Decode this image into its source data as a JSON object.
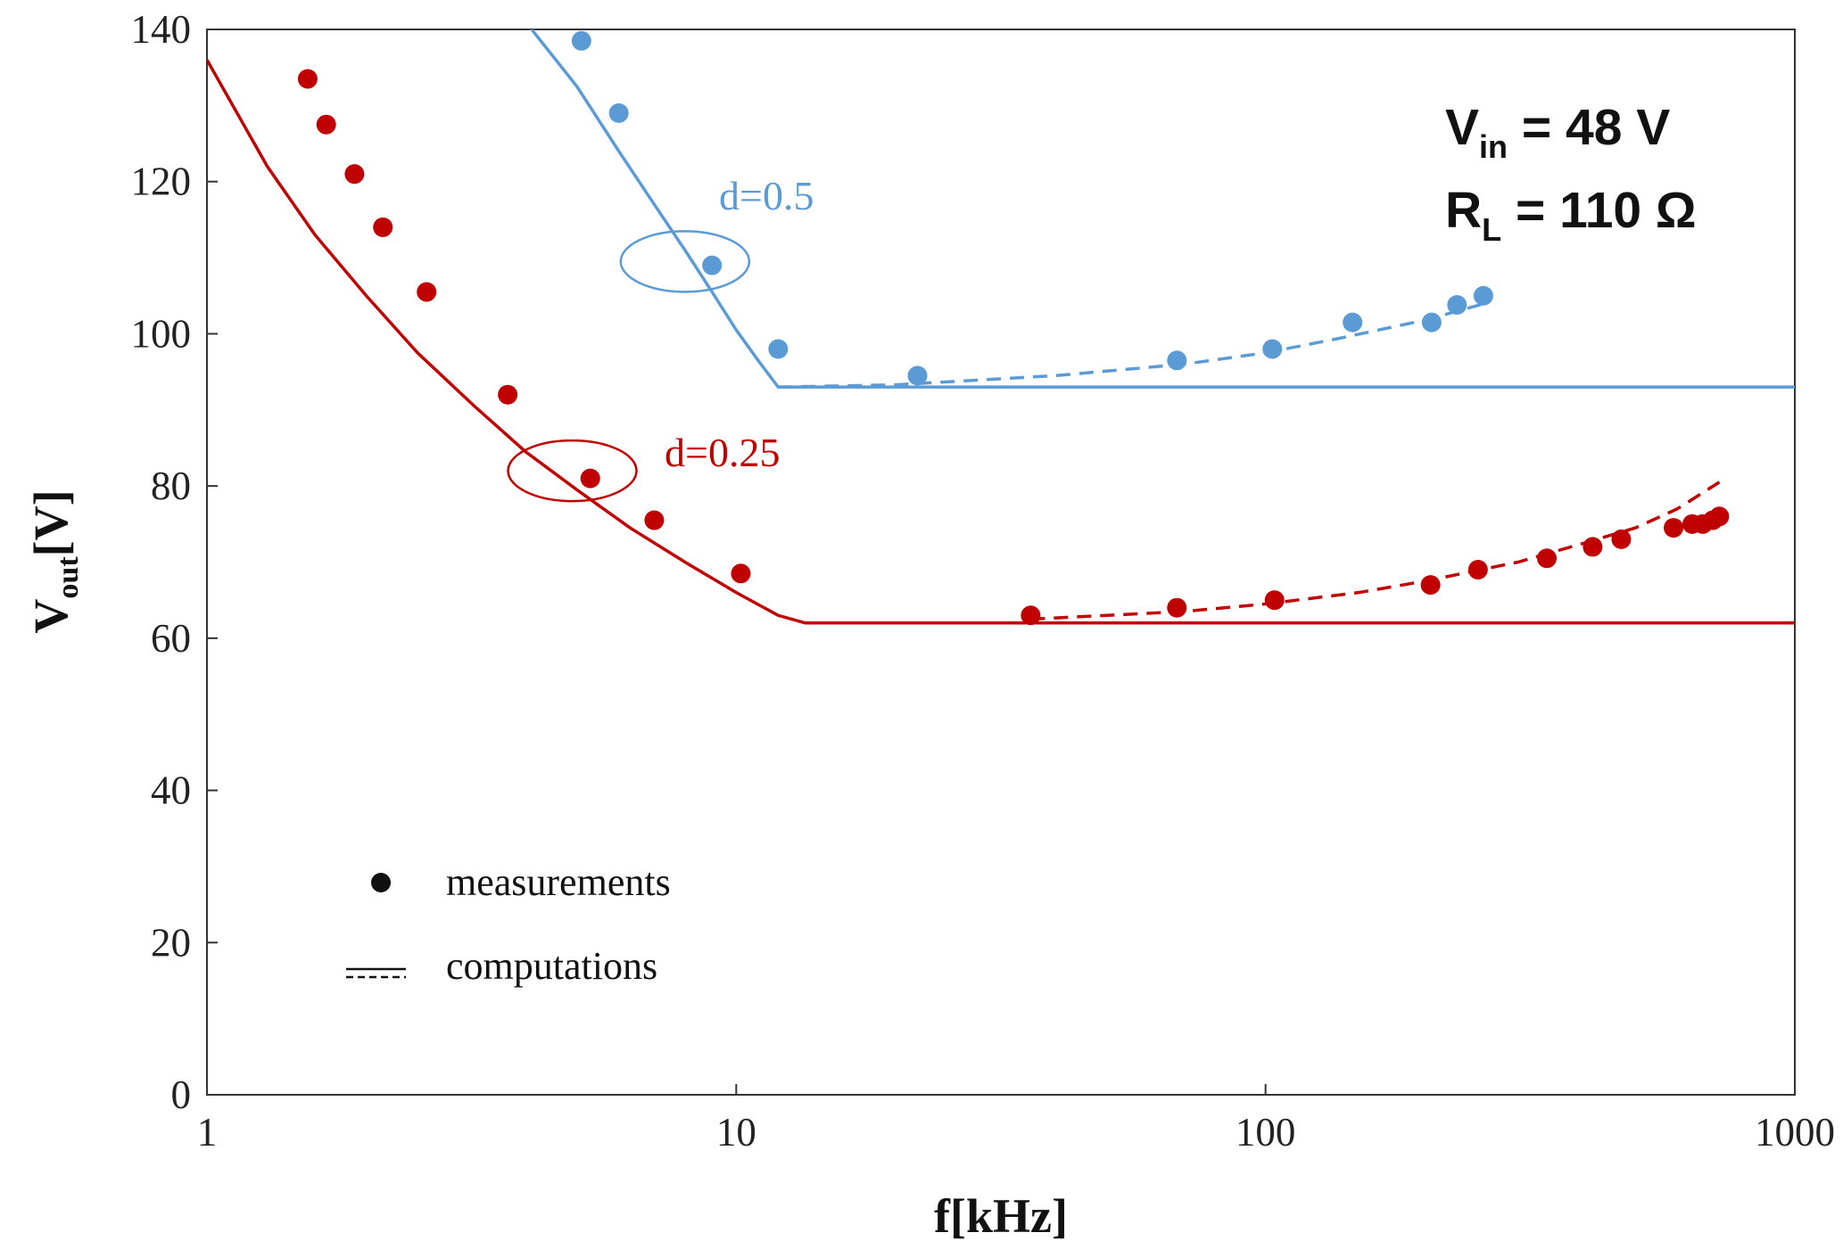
{
  "chart_data": {
    "type": "scatter",
    "title": "",
    "xlabel": "f[kHz]",
    "ylabel_main": "V",
    "ylabel_sub": "out",
    "ylabel_unit": "[V]",
    "xscale": "log",
    "xlim": [
      1,
      1000
    ],
    "ylim": [
      0,
      140
    ],
    "xticks": [
      1,
      10,
      100,
      1000
    ],
    "xtick_labels": [
      "1",
      "10",
      "100",
      "1000"
    ],
    "yticks": [
      0,
      20,
      40,
      60,
      80,
      100,
      120,
      140
    ],
    "ytick_labels": [
      "0",
      "20",
      "40",
      "60",
      "80",
      "100",
      "120",
      "140"
    ],
    "grid": false,
    "annotations": {
      "vin": {
        "main": "V",
        "sub": "in",
        "rest": " = 48 V"
      },
      "rl": {
        "main": "R",
        "sub": "L",
        "rest": " = 110 Ω"
      }
    },
    "legend": {
      "position": "bottom-left",
      "measurements": "measurements",
      "computations": "computations"
    },
    "series": [
      {
        "name": "d=0.5",
        "color": "#5b9bd5",
        "measured": {
          "x": [
            5.1,
            6.0,
            9.0,
            12.0,
            22.0,
            68.0,
            103.0,
            146.0,
            206.0,
            230.0,
            258.0
          ],
          "y": [
            138.5,
            129.0,
            109.0,
            98.0,
            94.5,
            96.5,
            98.0,
            101.5,
            101.5,
            103.8,
            105.0
          ]
        },
        "computed_solid": {
          "x": [
            4.0,
            5.0,
            6.0,
            7.0,
            8.0,
            9.0,
            10.0,
            11.0,
            12.0,
            1000.0
          ],
          "y": [
            141.0,
            132.5,
            124.0,
            117.0,
            111.0,
            105.5,
            100.5,
            96.5,
            93.0,
            93.0
          ]
        },
        "computed_dashed": {
          "x": [
            12.0,
            20.0,
            40.0,
            70.0,
            100.0,
            140.0,
            200.0,
            260.0
          ],
          "y": [
            93.0,
            93.3,
            94.5,
            96.0,
            97.5,
            99.5,
            101.8,
            104.0
          ]
        },
        "highlight": {
          "x": 8.0,
          "y": 109.5
        }
      },
      {
        "name": "d=0.25",
        "color": "#c00000",
        "measured": {
          "x": [
            1.55,
            1.68,
            1.9,
            2.15,
            2.6,
            3.7,
            5.3,
            7.0,
            10.2,
            36.0,
            68.0,
            104.0,
            205.0,
            252.0,
            340.0,
            415.0,
            470.0,
            590.0,
            640.0,
            670.0,
            700.0,
            720.0
          ],
          "y": [
            133.5,
            127.5,
            121.0,
            114.0,
            105.5,
            92.0,
            81.0,
            75.5,
            68.5,
            63.0,
            64.0,
            65.0,
            67.0,
            69.0,
            70.5,
            72.0,
            73.0,
            74.5,
            75.0,
            75.0,
            75.5,
            76.0
          ]
        },
        "computed_solid": {
          "x": [
            1.0,
            1.3,
            1.6,
            2.0,
            2.5,
            3.2,
            4.0,
            5.0,
            6.3,
            8.0,
            10.0,
            12.0,
            13.5,
            1000.0
          ],
          "y": [
            136.0,
            122.0,
            113.0,
            105.0,
            97.5,
            90.5,
            84.5,
            79.5,
            74.5,
            70.0,
            66.0,
            63.0,
            62.0,
            62.0
          ]
        },
        "computed_dashed": {
          "x": [
            36.0,
            70.0,
            100.0,
            150.0,
            200.0,
            300.0,
            400.0,
            500.0,
            600.0,
            720.0
          ],
          "y": [
            62.5,
            63.5,
            64.5,
            66.0,
            67.5,
            70.0,
            72.5,
            74.5,
            77.0,
            80.5
          ]
        },
        "highlight": {
          "x": 4.9,
          "y": 82.0
        }
      }
    ]
  }
}
